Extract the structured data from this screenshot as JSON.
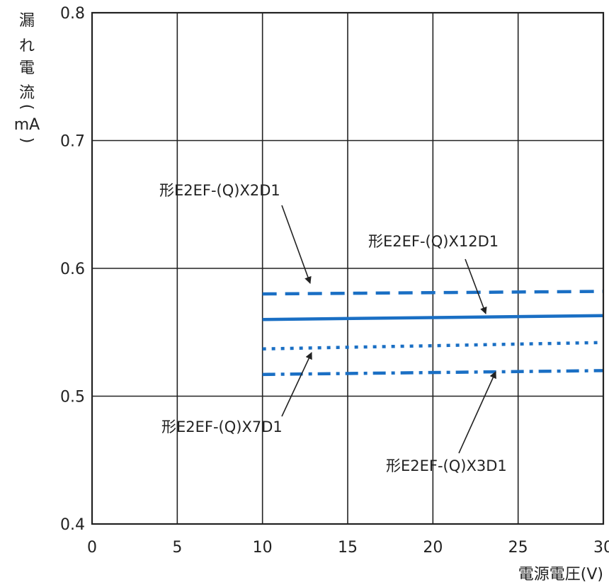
{
  "chart_data": {
    "type": "line",
    "title": "",
    "xlabel": "電源電圧(V)",
    "ylabel_chars": [
      "漏",
      "れ",
      "電",
      "流",
      "(",
      "mA",
      ")"
    ],
    "xlim": [
      0,
      30
    ],
    "ylim": [
      0.4,
      0.8
    ],
    "xticks": [
      0,
      5,
      10,
      15,
      20,
      25,
      30
    ],
    "yticks": [
      0.4,
      0.5,
      0.6,
      0.7,
      0.8
    ],
    "xtick_labels": [
      "0",
      "5",
      "10",
      "15",
      "20",
      "25",
      "30"
    ],
    "ytick_labels": [
      "0.4",
      "0.5",
      "0.6",
      "0.7",
      "0.8"
    ],
    "grid": true,
    "series": [
      {
        "name": "形E2EF-(Q)X2D1",
        "style": "dashed",
        "color": "#1a6fc4",
        "x": [
          10,
          30
        ],
        "y": [
          0.58,
          0.582
        ]
      },
      {
        "name": "形E2EF-(Q)X12D1",
        "style": "solid",
        "color": "#1a6fc4",
        "x": [
          10,
          30
        ],
        "y": [
          0.56,
          0.563
        ]
      },
      {
        "name": "形E2EF-(Q)X7D1",
        "style": "dotted",
        "color": "#1a6fc4",
        "x": [
          10,
          30
        ],
        "y": [
          0.537,
          0.542
        ]
      },
      {
        "name": "形E2EF-(Q)X3D1",
        "style": "dashdot",
        "color": "#1a6fc4",
        "x": [
          10,
          30
        ],
        "y": [
          0.517,
          0.52
        ]
      }
    ]
  }
}
